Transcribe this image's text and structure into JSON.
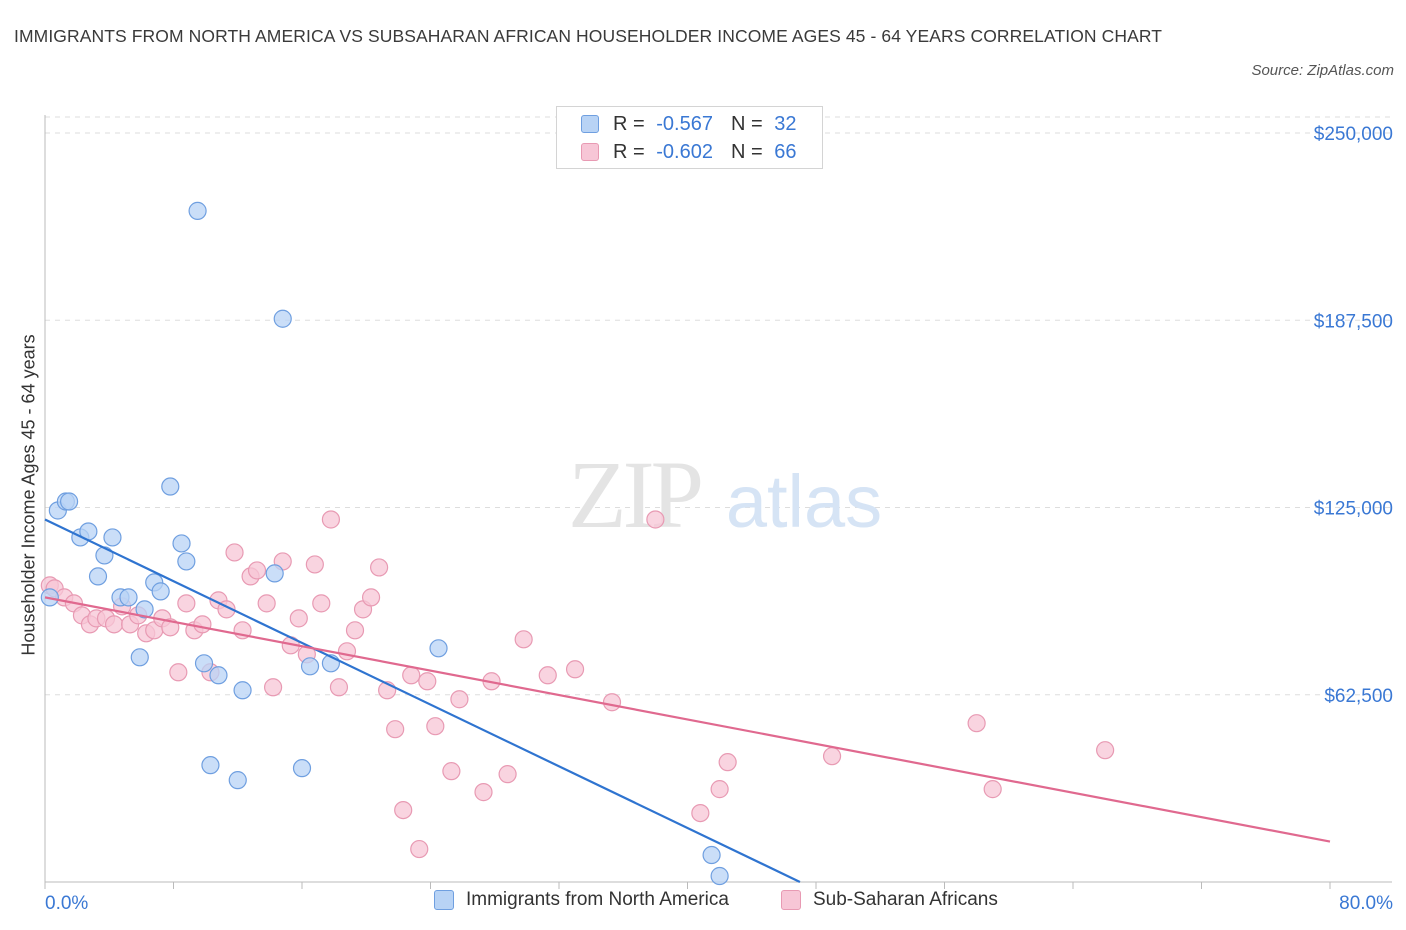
{
  "header": {
    "title": "IMMIGRANTS FROM NORTH AMERICA VS SUBSAHARAN AFRICAN HOUSEHOLDER INCOME AGES 45 - 64 YEARS CORRELATION CHART",
    "source": "Source: ZipAtlas.com"
  },
  "watermark": {
    "zip": "ZIP",
    "atlas": "atlas"
  },
  "colors": {
    "blue_fill": "#b8d3f5",
    "blue_stroke": "#6f9fe0",
    "blue_line": "#2f74d0",
    "pink_fill": "#f7c6d6",
    "pink_stroke": "#e89ab3",
    "pink_line": "#e0698f",
    "axis_text": "#3a78d4",
    "grid": "#dddddd"
  },
  "legend": {
    "rows": [
      {
        "r_label": "R =",
        "r_value": "-0.567",
        "n_label": "N =",
        "n_value": "32"
      },
      {
        "r_label": "R =",
        "r_value": "-0.602",
        "n_label": "N =",
        "n_value": "66"
      }
    ]
  },
  "chart_data": {
    "type": "scatter",
    "title": "IMMIGRANTS FROM NORTH AMERICA VS SUBSAHARAN AFRICAN HOUSEHOLDER INCOME AGES 45 - 64 YEARS CORRELATION CHART",
    "ylabel": "Householder Income Ages 45 - 64 years",
    "xlabel": "",
    "xlim": [
      0,
      80
    ],
    "ylim": [
      0,
      250000
    ],
    "x_tick_labels": [
      "0.0%",
      "80.0%"
    ],
    "y_ticks": [
      62500,
      125000,
      187500,
      250000
    ],
    "y_tick_labels": [
      "$62,500",
      "$125,000",
      "$187,500",
      "$250,000"
    ],
    "grid": true,
    "legend_position": "bottom",
    "series": [
      {
        "name": "Immigrants from North America",
        "color": "#b8d3f5",
        "points": [
          [
            0.3,
            95000
          ],
          [
            0.8,
            124000
          ],
          [
            1.3,
            127000
          ],
          [
            1.5,
            127000
          ],
          [
            2.2,
            115000
          ],
          [
            2.7,
            117000
          ],
          [
            3.3,
            102000
          ],
          [
            3.7,
            109000
          ],
          [
            4.2,
            115000
          ],
          [
            4.7,
            95000
          ],
          [
            5.2,
            95000
          ],
          [
            5.9,
            75000
          ],
          [
            6.2,
            91000
          ],
          [
            6.8,
            100000
          ],
          [
            7.2,
            97000
          ],
          [
            7.8,
            132000
          ],
          [
            8.5,
            113000
          ],
          [
            8.8,
            107000
          ],
          [
            9.5,
            224000
          ],
          [
            9.9,
            73000
          ],
          [
            10.3,
            39000
          ],
          [
            10.8,
            69000
          ],
          [
            12.0,
            34000
          ],
          [
            12.3,
            64000
          ],
          [
            14.3,
            103000
          ],
          [
            14.8,
            188000
          ],
          [
            16.0,
            38000
          ],
          [
            16.5,
            72000
          ],
          [
            17.8,
            73000
          ],
          [
            24.5,
            78000
          ],
          [
            42.0,
            2000
          ],
          [
            41.5,
            9000
          ]
        ],
        "trend": {
          "x": [
            0,
            47
          ],
          "y": [
            121000,
            0
          ]
        }
      },
      {
        "name": "Sub-Saharan Africans",
        "color": "#f7c6d6",
        "points": [
          [
            0.3,
            99000
          ],
          [
            0.6,
            98000
          ],
          [
            1.2,
            95000
          ],
          [
            1.8,
            93000
          ],
          [
            2.3,
            89000
          ],
          [
            2.8,
            86000
          ],
          [
            3.2,
            88000
          ],
          [
            3.8,
            88000
          ],
          [
            4.3,
            86000
          ],
          [
            4.8,
            92000
          ],
          [
            5.3,
            86000
          ],
          [
            5.8,
            89000
          ],
          [
            6.3,
            83000
          ],
          [
            6.8,
            84000
          ],
          [
            7.3,
            88000
          ],
          [
            7.8,
            85000
          ],
          [
            8.3,
            70000
          ],
          [
            8.8,
            93000
          ],
          [
            9.3,
            84000
          ],
          [
            9.8,
            86000
          ],
          [
            10.3,
            70000
          ],
          [
            10.8,
            94000
          ],
          [
            11.3,
            91000
          ],
          [
            11.8,
            110000
          ],
          [
            12.3,
            84000
          ],
          [
            12.8,
            102000
          ],
          [
            13.2,
            104000
          ],
          [
            13.8,
            93000
          ],
          [
            14.2,
            65000
          ],
          [
            14.8,
            107000
          ],
          [
            15.3,
            79000
          ],
          [
            15.8,
            88000
          ],
          [
            16.3,
            76000
          ],
          [
            16.8,
            106000
          ],
          [
            17.2,
            93000
          ],
          [
            17.8,
            121000
          ],
          [
            18.3,
            65000
          ],
          [
            18.8,
            77000
          ],
          [
            19.3,
            84000
          ],
          [
            19.8,
            91000
          ],
          [
            20.3,
            95000
          ],
          [
            20.8,
            105000
          ],
          [
            21.3,
            64000
          ],
          [
            21.8,
            51000
          ],
          [
            22.3,
            24000
          ],
          [
            22.8,
            69000
          ],
          [
            23.3,
            11000
          ],
          [
            23.8,
            67000
          ],
          [
            24.3,
            52000
          ],
          [
            25.3,
            37000
          ],
          [
            25.8,
            61000
          ],
          [
            27.3,
            30000
          ],
          [
            27.8,
            67000
          ],
          [
            28.8,
            36000
          ],
          [
            29.8,
            81000
          ],
          [
            31.3,
            69000
          ],
          [
            33.0,
            71000
          ],
          [
            35.3,
            60000
          ],
          [
            38.0,
            121000
          ],
          [
            40.8,
            23000
          ],
          [
            42.0,
            31000
          ],
          [
            42.5,
            40000
          ],
          [
            49.0,
            42000
          ],
          [
            58.0,
            53000
          ],
          [
            59.0,
            31000
          ],
          [
            66.0,
            44000
          ]
        ],
        "trend": {
          "x": [
            0,
            80
          ],
          "y": [
            95000,
            13500
          ]
        }
      }
    ]
  },
  "bottom_legend": {
    "items": [
      {
        "label": "Immigrants from North America"
      },
      {
        "label": "Sub-Saharan Africans"
      }
    ]
  }
}
